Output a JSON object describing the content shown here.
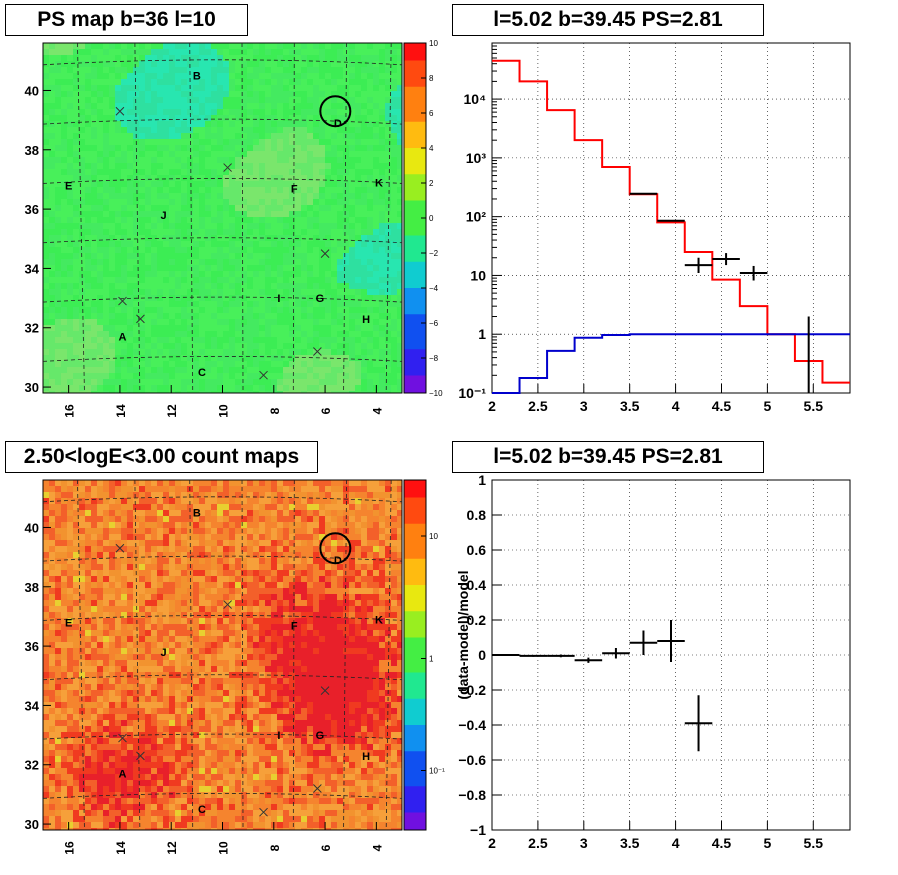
{
  "panels": {
    "ps_map": {
      "title": "PS map b=36 l=10",
      "x_ticks": [
        "16",
        "14",
        "12",
        "10",
        "8",
        "6",
        "4"
      ],
      "y_ticks": [
        "30",
        "32",
        "34",
        "36",
        "38",
        "40"
      ],
      "colorbar_ticks": [
        "10",
        "8",
        "6",
        "4",
        "2",
        "0",
        "−2",
        "−4",
        "−6",
        "−8",
        "−10"
      ],
      "base_color": "#33ee55"
    },
    "count_map": {
      "title": "2.50<logE<3.00 count maps",
      "x_ticks": [
        "16",
        "14",
        "12",
        "10",
        "8",
        "6",
        "4"
      ],
      "y_ticks": [
        "30",
        "32",
        "34",
        "36",
        "38",
        "40"
      ],
      "colorbar_ticks": [
        "10",
        "1",
        "10⁻¹"
      ],
      "base_color": "#f07a2a"
    },
    "spectrum": {
      "title": "l=5.02 b=39.45 PS=2.81"
    },
    "residual": {
      "title": "l=5.02 b=39.45 PS=2.81"
    }
  },
  "map_labels": [
    {
      "text": "A",
      "l": 13.9,
      "b": 31.7
    },
    {
      "text": "B",
      "l": 11.0,
      "b": 40.5
    },
    {
      "text": "C",
      "l": 10.8,
      "b": 30.5
    },
    {
      "text": "D",
      "l": 5.5,
      "b": 38.9
    },
    {
      "text": "E",
      "l": 16.0,
      "b": 36.8
    },
    {
      "text": "F",
      "l": 7.2,
      "b": 36.7
    },
    {
      "text": "G",
      "l": 6.2,
      "b": 33.0
    },
    {
      "text": "H",
      "l": 4.4,
      "b": 32.3
    },
    {
      "text": "I",
      "l": 7.8,
      "b": 33.0
    },
    {
      "text": "J",
      "l": 12.3,
      "b": 35.8
    },
    {
      "text": "K",
      "l": 3.9,
      "b": 36.9
    }
  ],
  "map_crosses": [
    {
      "l": 14.0,
      "b": 39.3
    },
    {
      "l": 9.8,
      "b": 37.4
    },
    {
      "l": 6.0,
      "b": 34.5
    },
    {
      "l": 13.9,
      "b": 32.9
    },
    {
      "l": 13.2,
      "b": 32.3
    },
    {
      "l": 6.3,
      "b": 31.2
    },
    {
      "l": 8.4,
      "b": 30.4
    }
  ],
  "map_circle": {
    "l": 5.6,
    "b": 39.3
  },
  "chart_data": [
    {
      "type": "heatmap",
      "title": "PS map b=36 l=10",
      "xlabel": "",
      "ylabel": "",
      "xlim": [
        17,
        3
      ],
      "ylim": [
        29.8,
        41.6
      ],
      "colorbar_range": [
        -10,
        10
      ],
      "grid": "dashed coordinate grid"
    },
    {
      "type": "heatmap",
      "title": "2.50<logE<3.00 count maps",
      "xlabel": "",
      "ylabel": "",
      "xlim": [
        17,
        3
      ],
      "ylim": [
        29.8,
        41.6
      ],
      "colorbar_scale": "log",
      "colorbar_range": [
        0.03,
        30
      ]
    },
    {
      "type": "line",
      "title": "l=5.02 b=39.45 PS=2.81",
      "xlabel": "",
      "ylabel": "",
      "xlim": [
        2,
        5.9
      ],
      "ylim": [
        0.1,
        90000
      ],
      "yscale": "log",
      "x_ticks": [
        2,
        2.5,
        3,
        3.5,
        4,
        4.5,
        5,
        5.5
      ],
      "y_tick_labels": [
        "10⁻¹",
        "1",
        "10",
        "10²",
        "10³",
        "10⁴"
      ],
      "grid": true,
      "series": [
        {
          "color": "#ff0000",
          "style": "step",
          "edges": [
            2,
            2.3,
            2.6,
            2.9,
            3.2,
            3.5,
            3.8,
            4.1,
            4.4,
            4.7,
            5.0,
            5.3,
            5.6,
            5.9
          ],
          "values": [
            45000,
            20000,
            6500,
            2000,
            700,
            240,
            80,
            25,
            8.5,
            3,
            1,
            0.35,
            0.15
          ]
        },
        {
          "color": "#0000cc",
          "style": "step",
          "edges": [
            2,
            2.3,
            2.6,
            2.9,
            3.2,
            3.5,
            3.8,
            4.1,
            4.4,
            4.7,
            5.0,
            5.3,
            5.6,
            5.9
          ],
          "values": [
            0.1,
            0.18,
            0.52,
            0.87,
            0.97,
            1,
            1,
            1,
            1,
            1,
            1,
            1,
            1
          ]
        },
        {
          "color": "#000000",
          "style": "errorbar",
          "points": [
            {
              "x": 3.65,
              "y": 245,
              "xerr": 0.15
            },
            {
              "x": 3.95,
              "y": 85,
              "xerr": 0.15
            },
            {
              "x": 4.25,
              "y": 15,
              "xerr": 0.15,
              "ylo": 11,
              "yhi": 20
            },
            {
              "x": 4.55,
              "y": 19,
              "xerr": 0.15,
              "ylo": 15,
              "yhi": 24
            },
            {
              "x": 4.85,
              "y": 11,
              "xerr": 0.15,
              "ylo": 8.2,
              "yhi": 14.5
            },
            {
              "x": 5.45,
              "y": 1,
              "ylo": 0.1,
              "yhi": 2
            }
          ]
        }
      ]
    },
    {
      "type": "scatter",
      "title": "l=5.02 b=39.45 PS=2.81",
      "xlabel": "",
      "ylabel": "(data-model)/model",
      "xlim": [
        2,
        5.9
      ],
      "ylim": [
        -1,
        1
      ],
      "x_ticks": [
        2,
        2.5,
        3,
        3.5,
        4,
        4.5,
        5,
        5.5
      ],
      "y_ticks": [
        -1,
        -0.8,
        -0.6,
        -0.4,
        -0.2,
        0,
        0.2,
        0.4,
        0.6,
        0.8,
        1
      ],
      "grid": true,
      "points": [
        {
          "x": 2.15,
          "y": 0.0,
          "xerr": 0.15,
          "yerr": 0.005
        },
        {
          "x": 2.45,
          "y": -0.005,
          "xerr": 0.15,
          "yerr": 0.005
        },
        {
          "x": 2.75,
          "y": -0.005,
          "xerr": 0.15,
          "yerr": 0.008
        },
        {
          "x": 3.05,
          "y": -0.03,
          "xerr": 0.15,
          "yerr": 0.015
        },
        {
          "x": 3.35,
          "y": 0.01,
          "xerr": 0.15,
          "yerr": 0.03
        },
        {
          "x": 3.65,
          "y": 0.07,
          "xerr": 0.15,
          "yerr": 0.07
        },
        {
          "x": 3.95,
          "y": 0.08,
          "xerr": 0.15,
          "yerr": 0.12
        },
        {
          "x": 4.25,
          "y": -0.39,
          "xerr": 0.15,
          "yerr": 0.16
        }
      ]
    }
  ]
}
